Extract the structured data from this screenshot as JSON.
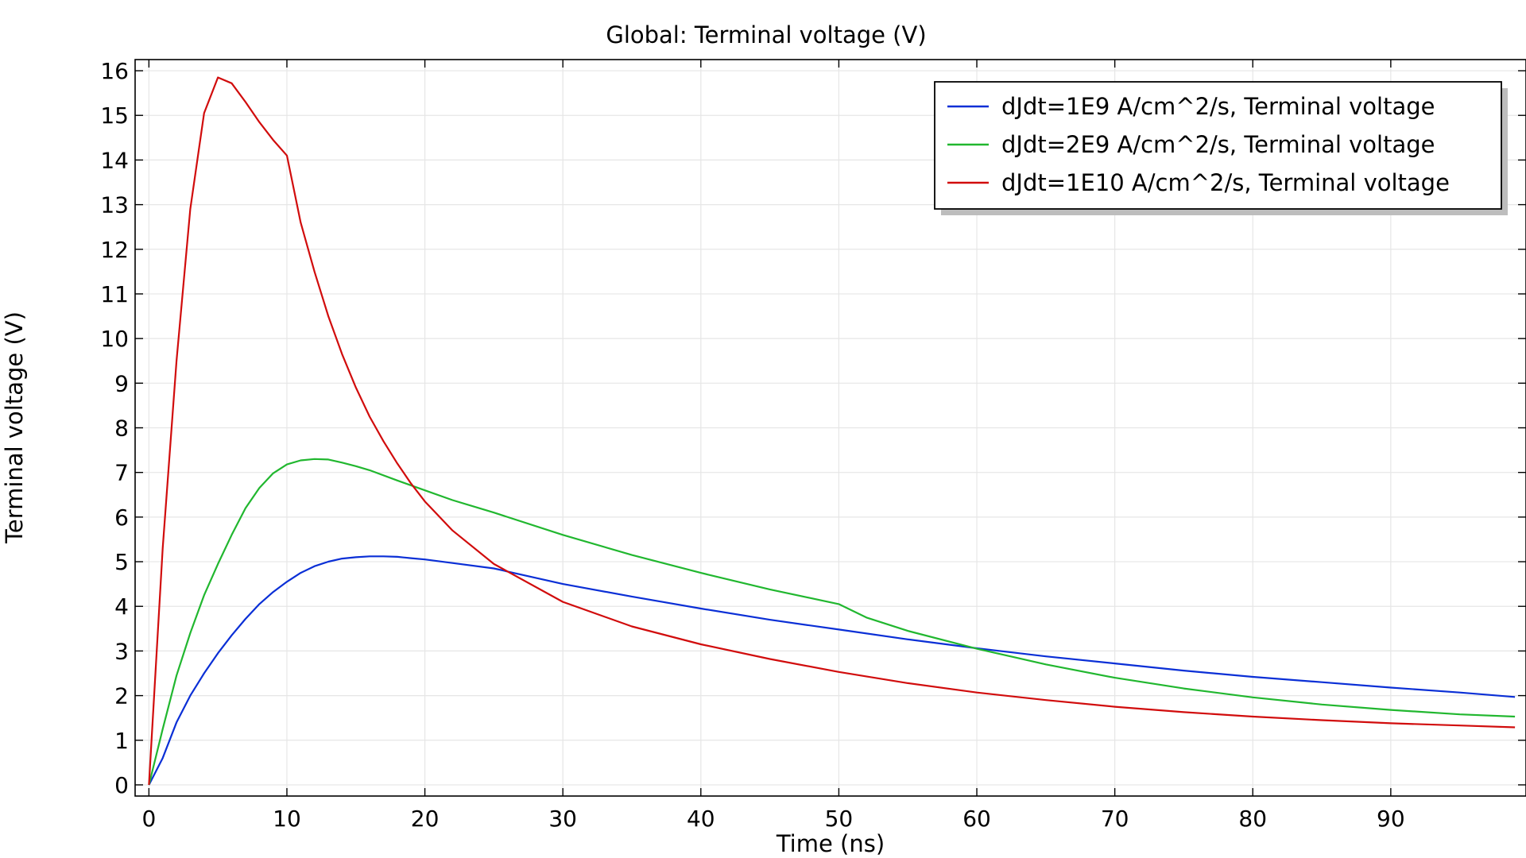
{
  "chart_data": {
    "type": "line",
    "title": "Global: Terminal voltage (V)",
    "xlabel": "Time (ns)",
    "ylabel": "Terminal voltage (V)",
    "xlim": [
      -1,
      99.8
    ],
    "ylim": [
      -0.25,
      16.25
    ],
    "xticks": [
      0,
      10,
      20,
      30,
      40,
      50,
      60,
      70,
      80,
      90
    ],
    "yticks": [
      0,
      1,
      2,
      3,
      4,
      5,
      6,
      7,
      8,
      9,
      10,
      11,
      12,
      13,
      14,
      15,
      16
    ],
    "grid": true,
    "legend_position": "top-right",
    "series": [
      {
        "name": "dJdt=1E9 A/cm^2/s, Terminal voltage",
        "color": "#0a2fd6",
        "x": [
          0,
          1,
          2,
          3,
          4,
          5,
          6,
          7,
          8,
          9,
          10,
          11,
          12,
          13,
          14,
          15,
          16,
          17,
          18,
          19,
          20,
          22,
          25,
          30,
          35,
          40,
          45,
          50,
          55,
          60,
          65,
          70,
          75,
          80,
          85,
          90,
          95,
          99
        ],
        "y": [
          0,
          0.6,
          1.4,
          2.0,
          2.5,
          2.95,
          3.35,
          3.72,
          4.05,
          4.32,
          4.55,
          4.75,
          4.9,
          5.0,
          5.07,
          5.1,
          5.12,
          5.12,
          5.11,
          5.08,
          5.05,
          4.97,
          4.85,
          4.5,
          4.22,
          3.95,
          3.7,
          3.48,
          3.26,
          3.06,
          2.88,
          2.72,
          2.56,
          2.42,
          2.3,
          2.18,
          2.07,
          1.97
        ]
      },
      {
        "name": "dJdt=2E9 A/cm^2/s, Terminal voltage",
        "color": "#21b72f",
        "x": [
          0,
          1,
          2,
          3,
          4,
          5,
          6,
          7,
          8,
          9,
          10,
          11,
          12,
          13,
          14,
          15,
          16,
          18,
          20,
          22,
          25,
          30,
          35,
          40,
          45,
          50,
          52,
          55,
          60,
          65,
          70,
          75,
          80,
          85,
          90,
          95,
          99
        ],
        "y": [
          0,
          1.25,
          2.45,
          3.4,
          4.25,
          4.95,
          5.6,
          6.2,
          6.65,
          6.98,
          7.18,
          7.27,
          7.3,
          7.29,
          7.22,
          7.14,
          7.05,
          6.82,
          6.6,
          6.38,
          6.1,
          5.6,
          5.15,
          4.75,
          4.38,
          4.05,
          3.75,
          3.45,
          3.05,
          2.7,
          2.4,
          2.16,
          1.96,
          1.8,
          1.68,
          1.58,
          1.53
        ]
      },
      {
        "name": "dJdt=1E10 A/cm^2/s, Terminal voltage",
        "color": "#d10c0c",
        "x": [
          0,
          1,
          2,
          3,
          4,
          5,
          6,
          7,
          8,
          9,
          10,
          11,
          12,
          13,
          14,
          15,
          16,
          17,
          18,
          19,
          20,
          22,
          25,
          30,
          35,
          40,
          45,
          50,
          55,
          60,
          65,
          70,
          75,
          80,
          85,
          90,
          95,
          99
        ],
        "y": [
          0,
          5.3,
          9.5,
          12.9,
          15.05,
          15.85,
          15.72,
          15.3,
          14.85,
          14.45,
          14.1,
          12.6,
          11.5,
          10.5,
          9.65,
          8.9,
          8.25,
          7.7,
          7.2,
          6.75,
          6.35,
          5.7,
          4.95,
          4.1,
          3.55,
          3.15,
          2.82,
          2.53,
          2.28,
          2.07,
          1.9,
          1.75,
          1.63,
          1.53,
          1.45,
          1.38,
          1.33,
          1.29
        ]
      }
    ]
  }
}
